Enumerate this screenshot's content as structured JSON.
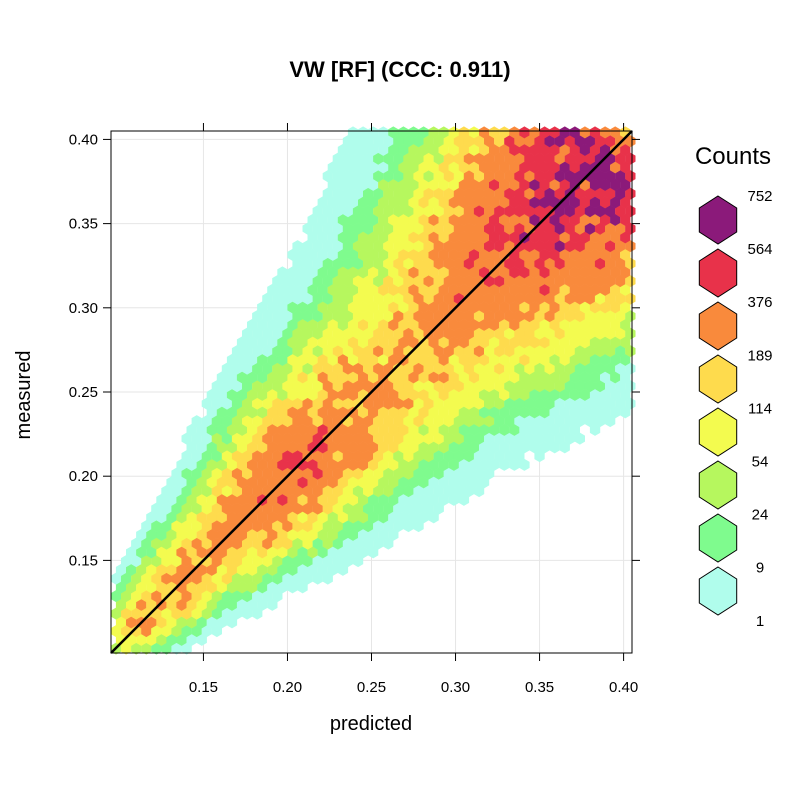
{
  "chart_data": {
    "type": "heatmap",
    "subtype": "hexbin",
    "title": "VW [RF]  (CCC: 0.911)",
    "xlabel": "predicted",
    "ylabel": "measured",
    "xlim": [
      0.095,
      0.405
    ],
    "ylim": [
      0.095,
      0.405
    ],
    "x_ticks": [
      {
        "value": 0.15,
        "label": "0.15"
      },
      {
        "value": 0.2,
        "label": "0.20"
      },
      {
        "value": 0.25,
        "label": "0.25"
      },
      {
        "value": 0.3,
        "label": "0.30"
      },
      {
        "value": 0.35,
        "label": "0.35"
      },
      {
        "value": 0.4,
        "label": "0.40"
      }
    ],
    "y_ticks": [
      {
        "value": 0.15,
        "label": "0.15"
      },
      {
        "value": 0.2,
        "label": "0.20"
      },
      {
        "value": 0.25,
        "label": "0.25"
      },
      {
        "value": 0.3,
        "label": "0.30"
      },
      {
        "value": 0.35,
        "label": "0.35"
      },
      {
        "value": 0.4,
        "label": "0.40"
      }
    ],
    "grid": true,
    "reference_line": {
      "type": "1:1",
      "from": [
        0.095,
        0.095
      ],
      "to": [
        0.405,
        0.405
      ],
      "color": "#000000"
    },
    "legend": {
      "title": "Counts",
      "placement": "right",
      "labels": [
        "752",
        "564",
        "376",
        "189",
        "114",
        "54",
        "24",
        "9",
        "1"
      ],
      "colors": [
        "#8b1a7a",
        "#e8324a",
        "#f98a3c",
        "#fedb4d",
        "#f3fb4f",
        "#b6f75e",
        "#7ffb8e",
        "#b0fdec"
      ]
    },
    "density_levels": [
      1,
      9,
      24,
      54,
      114,
      189,
      376,
      564,
      752
    ]
  }
}
